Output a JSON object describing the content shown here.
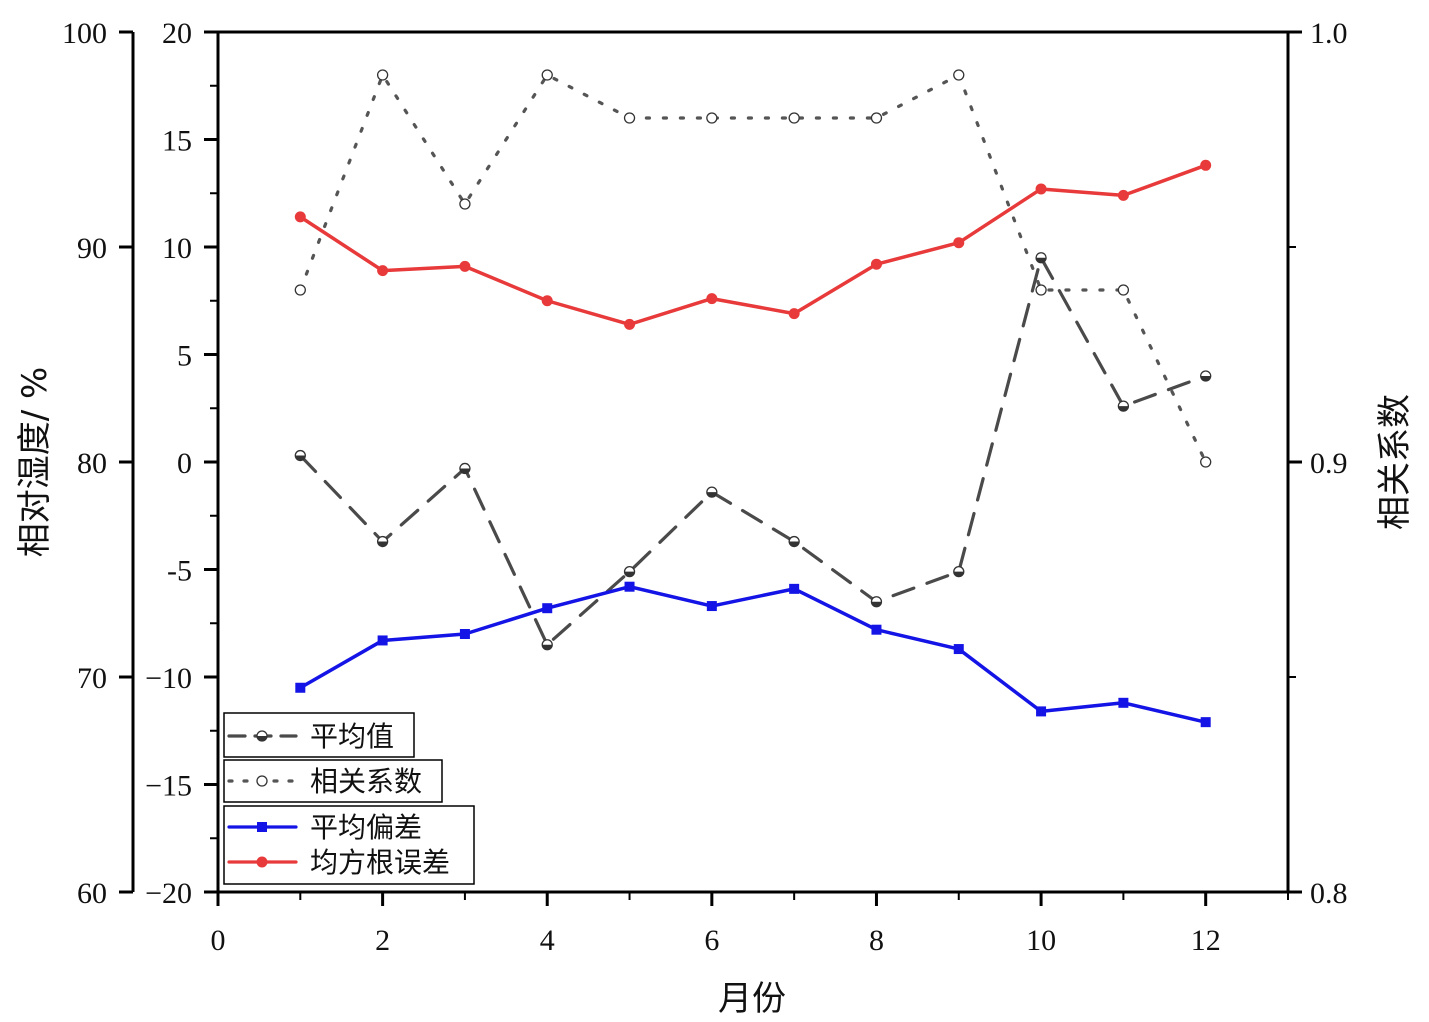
{
  "chart_data": {
    "type": "line",
    "title": "",
    "xlabel": "月份",
    "ylabel_left_outer": "相对湿度/ %",
    "ylabel_right": "相关系数",
    "xlim": [
      0,
      13
    ],
    "x_ticks": [
      0,
      2,
      4,
      6,
      8,
      10,
      12
    ],
    "y_outer_lim": [
      60,
      100
    ],
    "y_outer_ticks": [
      60,
      70,
      80,
      90,
      100
    ],
    "y_inner_lim": [
      -20,
      20
    ],
    "y_inner_ticks": [
      -20,
      -15,
      -10,
      -5,
      0,
      5,
      10,
      15,
      20
    ],
    "y_inner_tick_labels": [
      "−20",
      "−15",
      "−10",
      "-5",
      "0",
      "5",
      "10",
      "15",
      "20"
    ],
    "y_right_lim": [
      0.8,
      1.0
    ],
    "y_right_ticks": [
      0.8,
      0.9,
      1.0
    ],
    "y_right_tick_labels": [
      "0.8",
      "0.9",
      "1.0"
    ],
    "x": [
      1,
      2,
      3,
      4,
      5,
      6,
      7,
      8,
      9,
      10,
      11,
      12
    ],
    "series": [
      {
        "name": "平均值",
        "axis": "left_outer",
        "color": "#4a4a4a",
        "style": "dashed",
        "marker": "half-circle",
        "values": [
          80.3,
          76.3,
          79.7,
          71.5,
          74.9,
          78.6,
          76.3,
          73.5,
          74.9,
          89.5,
          82.6,
          84.0
        ]
      },
      {
        "name": "相关系数",
        "axis": "right",
        "color": "#555555",
        "style": "dotted",
        "marker": "open-circle",
        "values": [
          0.94,
          0.99,
          0.96,
          0.99,
          0.98,
          0.98,
          0.98,
          0.98,
          0.99,
          0.94,
          0.94,
          0.9
        ]
      },
      {
        "name": "平均偏差",
        "axis": "left_inner",
        "color": "#1414e6",
        "style": "solid",
        "marker": "square",
        "values": [
          -10.5,
          -8.3,
          -8.0,
          -6.8,
          -5.8,
          -6.7,
          -5.9,
          -7.8,
          -8.7,
          -11.6,
          -11.2,
          -12.1
        ]
      },
      {
        "name": "均方根误差",
        "axis": "left_inner",
        "color": "#e83a3a",
        "style": "solid",
        "marker": "circle",
        "values": [
          11.4,
          8.9,
          9.1,
          7.5,
          6.4,
          7.6,
          6.9,
          9.2,
          10.2,
          12.7,
          12.4,
          13.8
        ]
      }
    ],
    "legend_position": "bottom-left"
  }
}
